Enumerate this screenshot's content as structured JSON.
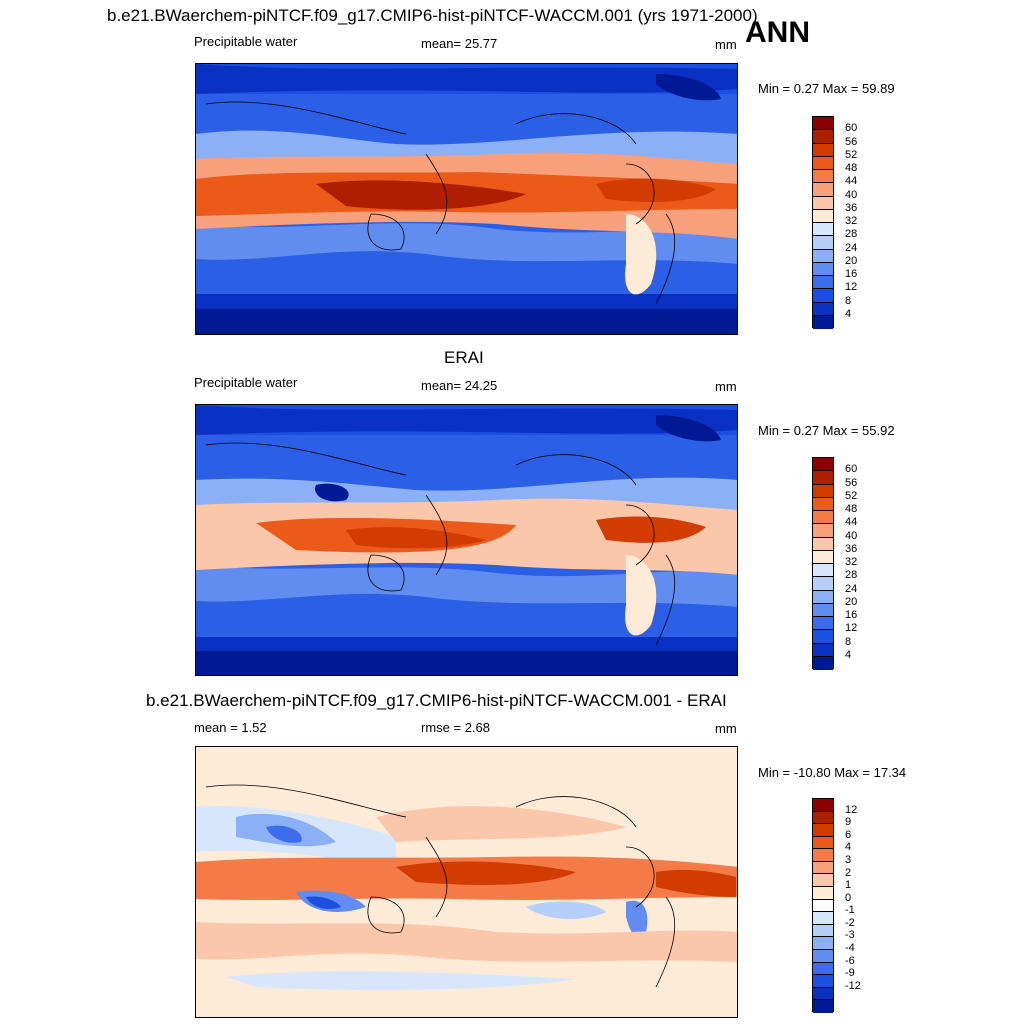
{
  "season_label": "ANN",
  "panels": [
    {
      "title": "b.e21.BWaerchem-piNTCF.f09_g17.CMIP6-hist-piNTCF-WACCM.001 (yrs 1971-2000)",
      "left_label": "Precipitable water",
      "center_label": "mean=  25.77",
      "units": "mm",
      "minmax": "Min =   0.27 Max =  59.89",
      "colorbar": {
        "colors": [
          "#8b0000",
          "#b01e00",
          "#d23c00",
          "#ec5a1a",
          "#f47b48",
          "#f8a07c",
          "#fbc7aa",
          "#fdebd8",
          "#d7e6fb",
          "#b5cefa",
          "#8cb0f5",
          "#628df0",
          "#3b6cec",
          "#1c4fe0",
          "#0a30c4",
          "#001a96"
        ],
        "labels": [
          "60",
          "56",
          "52",
          "48",
          "44",
          "40",
          "36",
          "32",
          "28",
          "24",
          "20",
          "16",
          "12",
          "8",
          "4"
        ]
      }
    },
    {
      "title": "ERAI",
      "left_label": "Precipitable water",
      "center_label": "mean=  24.25",
      "units": "mm",
      "minmax": "Min =   0.27 Max =  55.92",
      "colorbar": {
        "colors": [
          "#8b0000",
          "#b01e00",
          "#d23c00",
          "#ec5a1a",
          "#f47b48",
          "#f8a07c",
          "#fbc7aa",
          "#fdebd8",
          "#d7e6fb",
          "#b5cefa",
          "#8cb0f5",
          "#628df0",
          "#3b6cec",
          "#1c4fe0",
          "#0a30c4",
          "#001a96"
        ],
        "labels": [
          "60",
          "56",
          "52",
          "48",
          "44",
          "40",
          "36",
          "32",
          "28",
          "24",
          "20",
          "16",
          "12",
          "8",
          "4"
        ]
      }
    },
    {
      "title": "b.e21.BWaerchem-piNTCF.f09_g17.CMIP6-hist-piNTCF-WACCM.001 - ERAI",
      "left_label": "mean =   1.52",
      "center_label": "rmse =   2.68",
      "units": "mm",
      "minmax": "Min = -10.80 Max =  17.34",
      "colorbar": {
        "colors": [
          "#8b0000",
          "#b01e00",
          "#d23c00",
          "#ec5a1a",
          "#f47b48",
          "#f8a07c",
          "#fbc7aa",
          "#fdebd8",
          "#ffffff",
          "#d7e6fb",
          "#b5cefa",
          "#8cb0f5",
          "#628df0",
          "#3b6cec",
          "#1c4fe0",
          "#0a30c4",
          "#001a96"
        ],
        "labels": [
          "12",
          "9",
          "6",
          "4",
          "3",
          "2",
          "1",
          "0",
          "-1",
          "-2",
          "-3",
          "-4",
          "-6",
          "-9",
          "-12"
        ]
      }
    }
  ]
}
